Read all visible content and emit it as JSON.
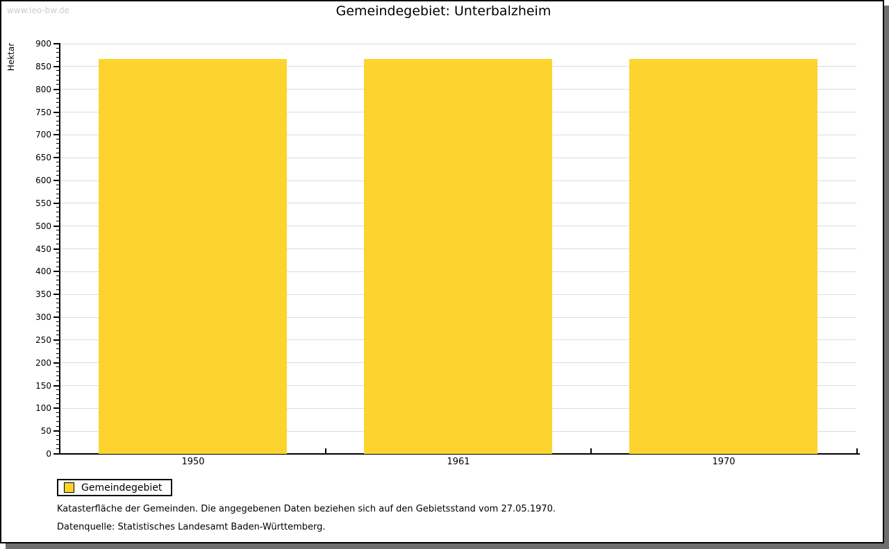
{
  "watermark": "www.leo-bw.de",
  "title": "Gemeindegebiet: Unterbalzheim",
  "chart_data": {
    "type": "bar",
    "title": "Gemeindegebiet: Unterbalzheim",
    "categories": [
      "1950",
      "1961",
      "1970"
    ],
    "series": [
      {
        "name": "Gemeindegebiet",
        "values": [
          867,
          867,
          867
        ]
      }
    ],
    "xlabel": "",
    "ylabel": "Hektar",
    "ylim": [
      0,
      900
    ],
    "ytick_major_step": 50,
    "ytick_minor_step": 10,
    "grid": true,
    "legend_position": "bottom-left"
  },
  "legend": {
    "label": "Gemeindegebiet"
  },
  "footer": {
    "line1": "Katasterfläche der Gemeinden. Die angegebenen Daten beziehen sich auf den Gebietsstand vom 27.05.1970.",
    "line2": "Datenquelle: Statistisches Landesamt Baden-Württemberg."
  },
  "colors": {
    "bar": "#FCD42D",
    "grid": "#DCDCDC",
    "axis": "#000000",
    "watermark": "#CCCCCC",
    "frame_shadow": "#6E6E6E",
    "background": "#FFFFFF"
  }
}
